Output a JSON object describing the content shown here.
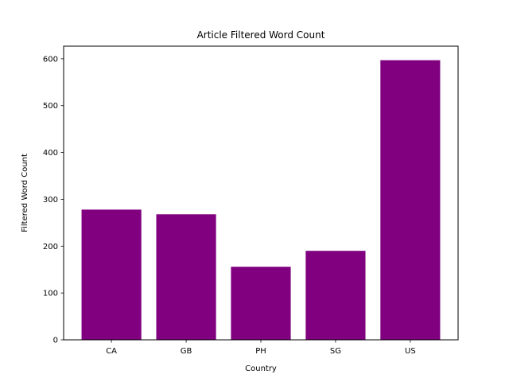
{
  "chart_data": {
    "type": "bar",
    "title": "Article Filtered Word Count",
    "xlabel": "Country",
    "ylabel": "Filtered Word Count",
    "categories": [
      "CA",
      "GB",
      "PH",
      "SG",
      "US"
    ],
    "values": [
      278,
      268,
      156,
      190,
      597
    ],
    "ylim": [
      0,
      627
    ],
    "yticks": [
      0,
      100,
      200,
      300,
      400,
      500,
      600
    ],
    "bar_color": "#800080",
    "grid": false,
    "legend": "none"
  }
}
